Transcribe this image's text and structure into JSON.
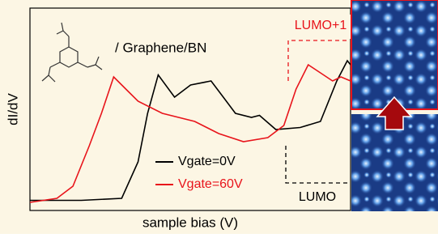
{
  "chart_data": {
    "type": "line",
    "xlabel": "sample bias (V)",
    "ylabel": "dI/dV",
    "annotations": [
      "/ Graphene/BN",
      "LUMO+1",
      "LUMO"
    ],
    "xlim": [
      0,
      100
    ],
    "ylim": [
      0,
      100
    ],
    "series": [
      {
        "name": "Vgate=0V",
        "color": "#000000",
        "x": [
          0,
          16,
          28.6,
          33.7,
          36.7,
          40,
          45.1,
          50.1,
          56.5,
          60.3,
          64.1,
          69.1,
          71.6,
          76.7,
          84.3,
          90.6,
          95.7,
          99,
          100
        ],
        "values": [
          5,
          5,
          6,
          24,
          48,
          67,
          56,
          62,
          64,
          56,
          48,
          46,
          47,
          40,
          41,
          44,
          64,
          74,
          72
        ]
      },
      {
        "name": "Vgate=60V",
        "color": "#e8141b",
        "x": [
          0,
          8.4,
          13.4,
          18.5,
          22.3,
          26.1,
          29.9,
          33.7,
          41.3,
          51.4,
          58.9,
          66.6,
          74.2,
          79.2,
          83,
          86.8,
          90.6,
          94.4,
          97,
          100
        ],
        "values": [
          4,
          6,
          12,
          32,
          48,
          66,
          60,
          54,
          48,
          44,
          38,
          34,
          36,
          42,
          60,
          72,
          68,
          64,
          66,
          64
        ]
      }
    ]
  }
}
